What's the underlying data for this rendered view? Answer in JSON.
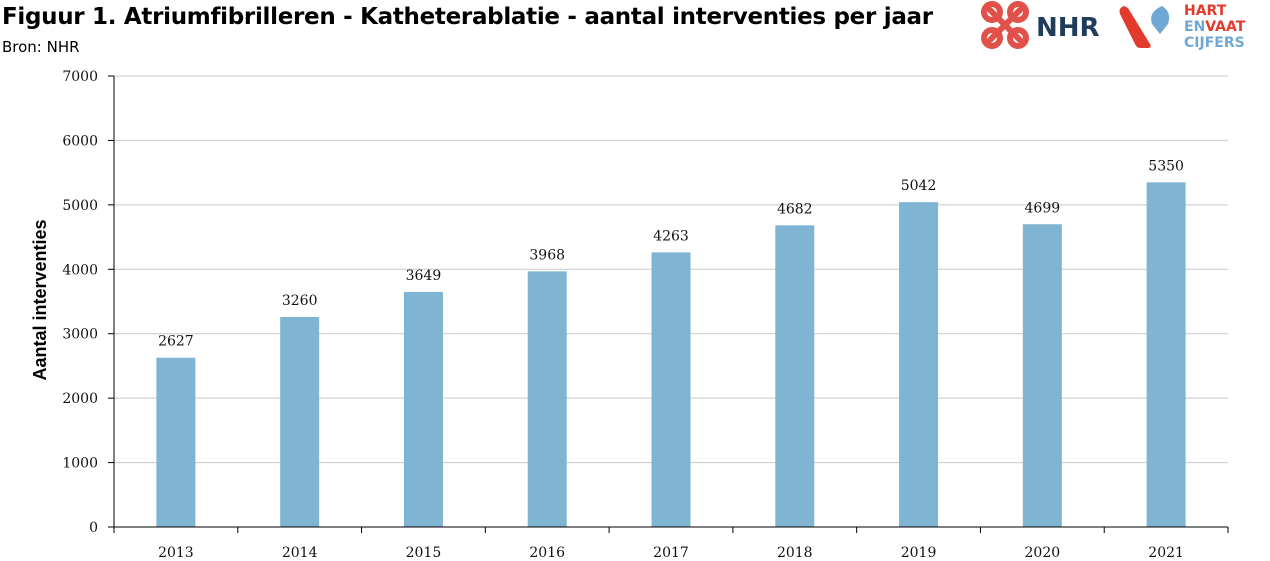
{
  "header": {
    "title": "Figuur 1. Atriumfibrilleren - Katheterablatie - aantal interventies per jaar",
    "source": "Bron: NHR"
  },
  "logos": {
    "nhr_text": "NHR",
    "hvc_line1": "HART",
    "hvc_line2_en": "EN",
    "hvc_line2_vaat": "VAAT",
    "hvc_line3": "CIJFERS",
    "colors": {
      "nhr_red": "#e2504a",
      "nhr_navy": "#1f3d5a",
      "hvc_blue": "#6fa8d4",
      "hvc_red": "#e23b2e"
    }
  },
  "chart_data": {
    "type": "bar",
    "title": "Figuur 1. Atriumfibrilleren - Katheterablatie - aantal interventies per jaar",
    "xlabel": "",
    "ylabel": "Aantal interventies",
    "categories": [
      "2013",
      "2014",
      "2015",
      "2016",
      "2017",
      "2018",
      "2019",
      "2020",
      "2021"
    ],
    "values": [
      2627,
      3260,
      3649,
      3968,
      4263,
      4682,
      5042,
      4699,
      5350
    ],
    "ylim": [
      0,
      7000
    ],
    "yticks": [
      0,
      1000,
      2000,
      3000,
      4000,
      5000,
      6000,
      7000
    ],
    "grid": true,
    "legend": "none",
    "bar_color": "#7fb5d2",
    "grid_color": "#c8c8c8"
  }
}
